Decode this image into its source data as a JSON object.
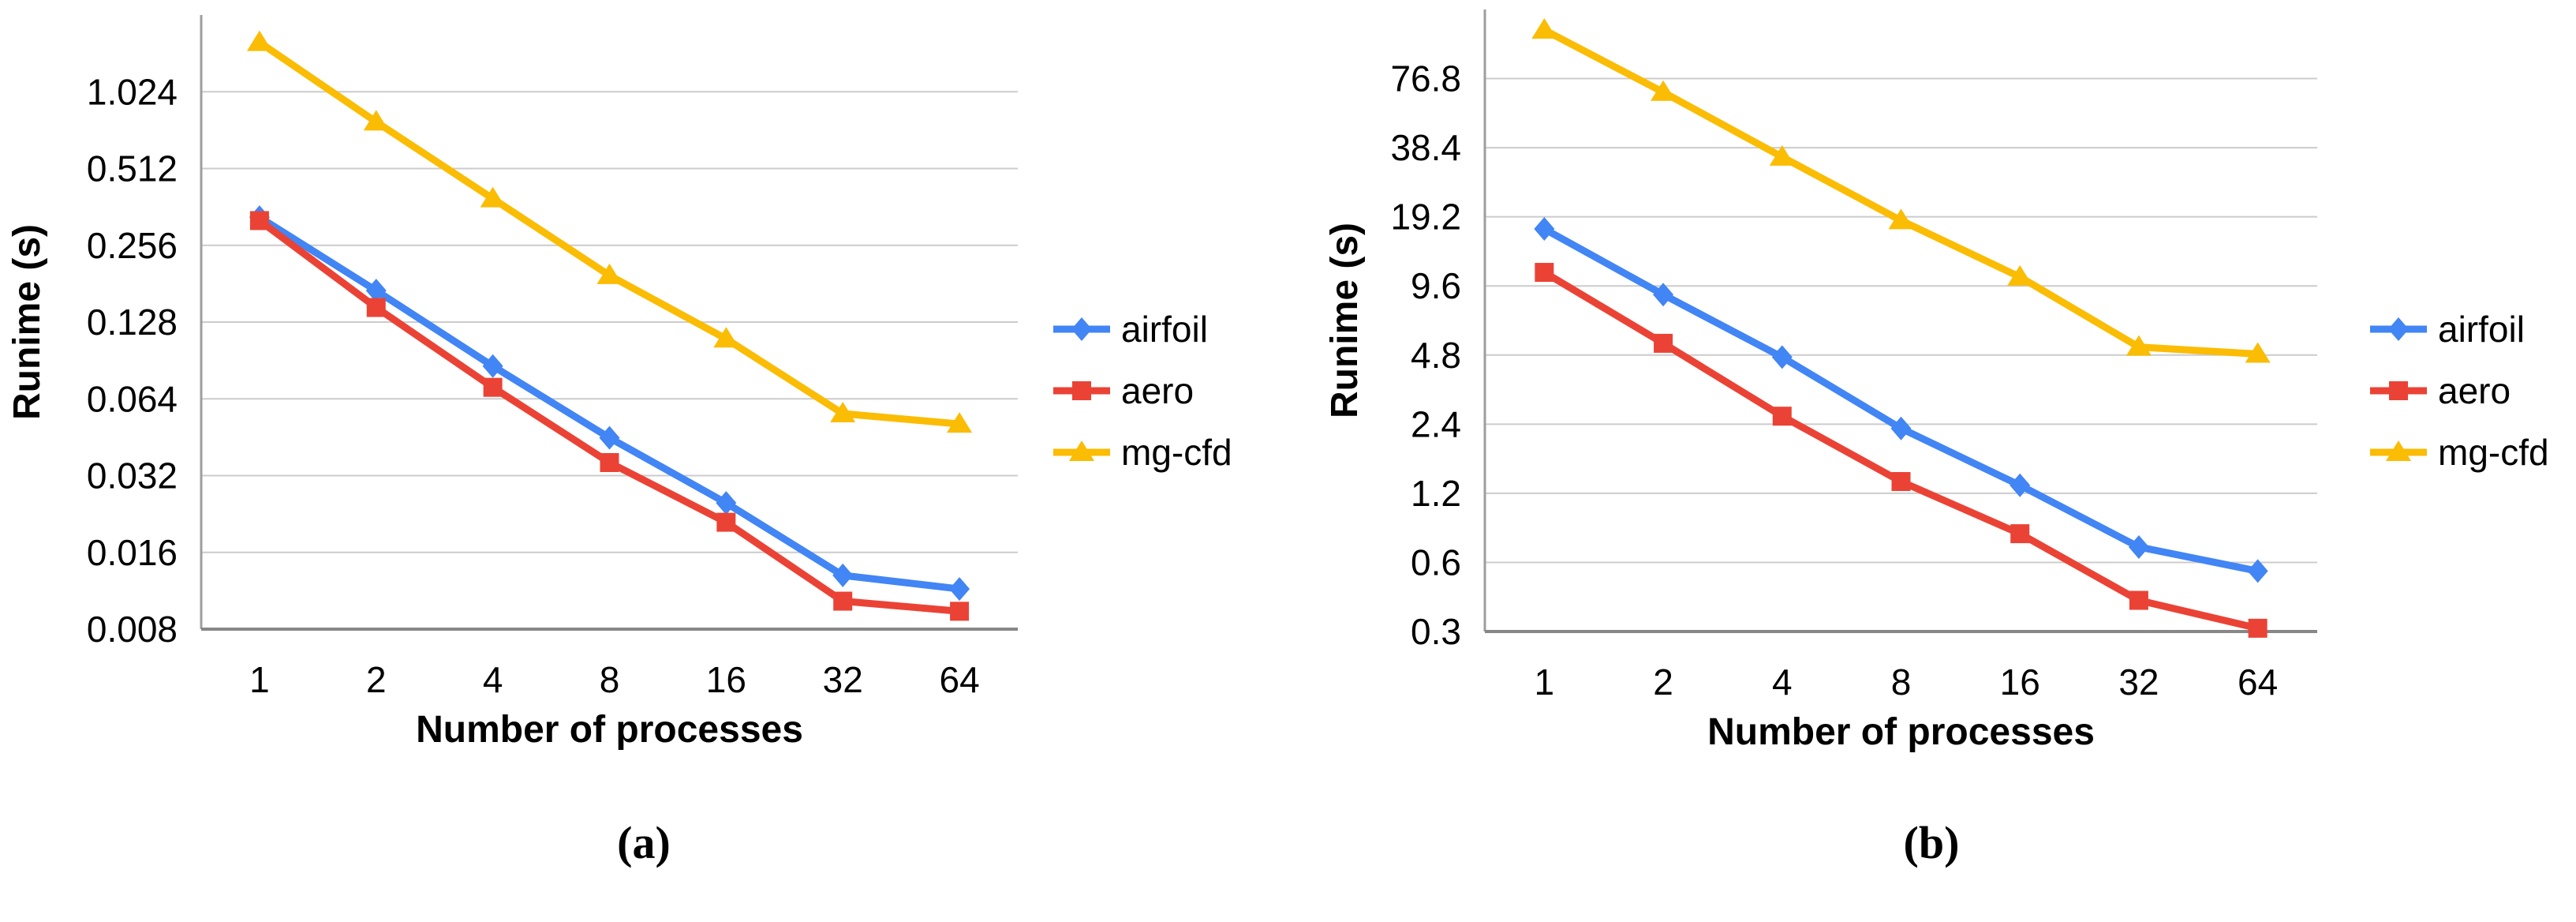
{
  "page": {
    "background": "#ffffff",
    "description_text": "Two side-by-side log-scale runtime scaling charts"
  },
  "chart_data": [
    {
      "id": "a",
      "caption": "(a)",
      "type": "line",
      "title": "",
      "xlabel": "Number of processes",
      "ylabel": "Runime (s)",
      "x_scale": "categorical powers of 2",
      "y_scale": "log2",
      "grid": true,
      "legend_position": "right-middle",
      "categories": [
        "1",
        "2",
        "4",
        "8",
        "16",
        "32",
        "64"
      ],
      "ylim": [
        0.008,
        2.048
      ],
      "y_ticks": [
        {
          "value": 0.008,
          "label": "0.008"
        },
        {
          "value": 0.016,
          "label": "0.016"
        },
        {
          "value": 0.032,
          "label": "0.032"
        },
        {
          "value": 0.064,
          "label": "0.064"
        },
        {
          "value": 0.128,
          "label": "0.128"
        },
        {
          "value": 0.256,
          "label": "0.256"
        },
        {
          "value": 0.512,
          "label": "0.512"
        },
        {
          "value": 1.024,
          "label": "1.024"
        }
      ],
      "series": [
        {
          "name": "airfoil",
          "color": "#4285F4",
          "marker": "diamond",
          "values": [
            0.33,
            0.17,
            0.086,
            0.045,
            0.025,
            0.013,
            0.0115
          ]
        },
        {
          "name": "aero",
          "color": "#EA4335",
          "marker": "square",
          "values": [
            0.32,
            0.146,
            0.071,
            0.036,
            0.021,
            0.0103,
            0.0094
          ]
        },
        {
          "name": "mg-cfd",
          "color": "#FBBC04",
          "marker": "triangle",
          "values": [
            1.6,
            0.78,
            0.39,
            0.195,
            0.11,
            0.056,
            0.051
          ]
        }
      ]
    },
    {
      "id": "b",
      "caption": "(b)",
      "type": "line",
      "title": "",
      "xlabel": "Number of processes",
      "ylabel": "Runime (s)",
      "x_scale": "categorical powers of 2",
      "y_scale": "log2",
      "grid": true,
      "legend_position": "right-middle",
      "categories": [
        "1",
        "2",
        "4",
        "8",
        "16",
        "32",
        "64"
      ],
      "ylim": [
        0.3,
        153.6
      ],
      "y_ticks": [
        {
          "value": 0.3,
          "label": "0.3"
        },
        {
          "value": 0.6,
          "label": "0.6"
        },
        {
          "value": 1.2,
          "label": "1.2"
        },
        {
          "value": 2.4,
          "label": "2.4"
        },
        {
          "value": 4.8,
          "label": "4.8"
        },
        {
          "value": 9.6,
          "label": "9.6"
        },
        {
          "value": 19.2,
          "label": "19.2"
        },
        {
          "value": 38.4,
          "label": "38.4"
        },
        {
          "value": 76.8,
          "label": "76.8"
        }
      ],
      "series": [
        {
          "name": "airfoil",
          "color": "#4285F4",
          "marker": "diamond",
          "values": [
            17,
            8.8,
            4.7,
            2.3,
            1.3,
            0.7,
            0.55
          ]
        },
        {
          "name": "aero",
          "color": "#EA4335",
          "marker": "square",
          "values": [
            11,
            5.4,
            2.6,
            1.35,
            0.8,
            0.41,
            0.31
          ]
        },
        {
          "name": "mg-cfd",
          "color": "#FBBC04",
          "marker": "triangle",
          "values": [
            125,
            67,
            35,
            18.5,
            10.5,
            5.2,
            4.85
          ]
        }
      ]
    }
  ]
}
